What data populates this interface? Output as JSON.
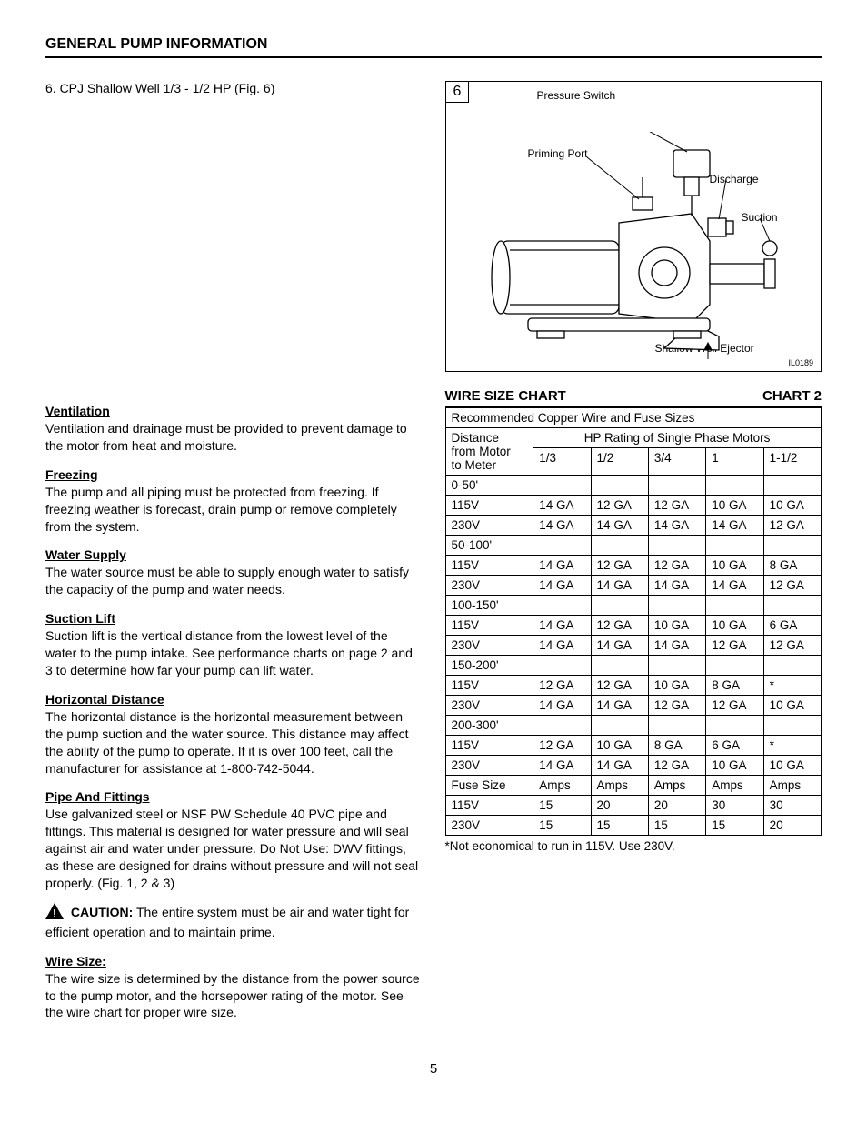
{
  "page_title": "GENERAL PUMP INFORMATION",
  "item_line": "6. CPJ Shallow Well 1/3 - 1/2 HP (Fig. 6)",
  "sections": {
    "ventilation": {
      "h": "Ventilation",
      "p": "Ventilation and drainage must be provided to prevent damage to the motor from heat and moisture."
    },
    "freezing": {
      "h": "Freezing",
      "p": "The pump and all piping must be protected from freezing. If freezing weather is forecast, drain pump or remove completely from the system."
    },
    "water_supply": {
      "h": "Water Supply",
      "p": "The water source must be able to supply enough water to satisfy the capacity of the pump and water needs."
    },
    "suction_lift": {
      "h": "Suction Lift",
      "p": "Suction lift is the vertical distance from the lowest level of the water to the pump intake. See performance charts on page 2 and 3 to determine how far your pump can lift water."
    },
    "horiz": {
      "h": "Horizontal Distance",
      "p": "The horizontal distance is the horizontal measurement between the pump suction and the water source. This distance may affect the ability of the pump to operate. If it is over 100 feet, call the manufacturer for assistance at 1-800-742-5044."
    },
    "pipe": {
      "h": "Pipe And Fittings",
      "p": "Use galvanized steel or NSF PW Schedule 40 PVC pipe and fittings. This material is designed for water pressure and will seal against air and water under pressure. Do Not Use: DWV fittings, as these are designed for drains without pressure and will not seal properly. (Fig. 1, 2 & 3)"
    },
    "wire_size": {
      "h": "Wire Size:",
      "p": "The wire size is determined by the distance from the power source to the pump motor, and the horsepower rating of the motor. See the wire chart for proper wire size."
    }
  },
  "caution": {
    "label": "CAUTION:",
    "text": "  The entire system must be air and water tight for efficient operation and to maintain prime."
  },
  "figure": {
    "num": "6",
    "labels": {
      "pressure_switch": "Pressure Switch",
      "priming_port": "Priming Port",
      "discharge": "Discharge",
      "suction": "Suction",
      "ejector": "Shallow Well Ejector"
    },
    "id": "IL0189"
  },
  "chart": {
    "title_left": "WIRE SIZE CHART",
    "title_right": "CHART 2",
    "header_row": "Recommended Copper Wire and Fuse Sizes",
    "hp_header": "HP Rating of Single Phase Motors",
    "dist_label_1": "Distance",
    "dist_label_2": "from Motor",
    "dist_label_3": "to Meter",
    "hp_cols": [
      "1/3",
      "1/2",
      "3/4",
      "1",
      "1-1/2"
    ],
    "groups": [
      {
        "range": "0-50'",
        "rows": [
          {
            "label": "115V",
            "v": [
              "14 GA",
              "12 GA",
              "12 GA",
              "10 GA",
              "10 GA"
            ]
          },
          {
            "label": "230V",
            "v": [
              "14 GA",
              "14 GA",
              "14 GA",
              "14 GA",
              "12 GA"
            ]
          }
        ]
      },
      {
        "range": "50-100'",
        "rows": [
          {
            "label": "115V",
            "v": [
              "14 GA",
              "12 GA",
              "12 GA",
              "10 GA",
              "8 GA"
            ]
          },
          {
            "label": "230V",
            "v": [
              "14 GA",
              "14 GA",
              "14 GA",
              "14 GA",
              "12 GA"
            ]
          }
        ]
      },
      {
        "range": "100-150'",
        "rows": [
          {
            "label": "115V",
            "v": [
              "14 GA",
              "12 GA",
              "10 GA",
              "10 GA",
              "6 GA"
            ]
          },
          {
            "label": "230V",
            "v": [
              "14 GA",
              "14 GA",
              "14 GA",
              "12 GA",
              "12 GA"
            ]
          }
        ]
      },
      {
        "range": "150-200'",
        "rows": [
          {
            "label": "115V",
            "v": [
              "12 GA",
              "12 GA",
              "10 GA",
              "8 GA",
              "*"
            ]
          },
          {
            "label": "230V",
            "v": [
              "14 GA",
              "14 GA",
              "12 GA",
              "12 GA",
              "10 GA"
            ]
          }
        ]
      },
      {
        "range": "200-300'",
        "rows": [
          {
            "label": "115V",
            "v": [
              "12 GA",
              "10 GA",
              "8 GA",
              "6 GA",
              "*"
            ]
          },
          {
            "label": "230V",
            "v": [
              "14 GA",
              "14 GA",
              "12 GA",
              "10 GA",
              "10 GA"
            ]
          }
        ]
      }
    ],
    "fuse": {
      "label": "Fuse Size",
      "amps": "Amps",
      "rows": [
        {
          "label": "115V",
          "v": [
            "15",
            "20",
            "20",
            "30",
            "30"
          ]
        },
        {
          "label": "230V",
          "v": [
            "15",
            "15",
            "15",
            "15",
            "20"
          ]
        }
      ]
    },
    "footnote": "*Not economical to run in 115V. Use 230V."
  },
  "page_number": "5"
}
